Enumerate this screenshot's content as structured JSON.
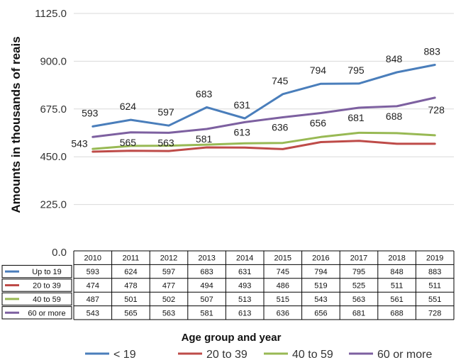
{
  "chart_data": {
    "type": "line",
    "title": "",
    "ylabel": "Amounts in thousands of reais",
    "xlabel": "Age group and year",
    "ylim": [
      0,
      1125
    ],
    "yticks": [
      "0.0",
      "225.0",
      "450.0",
      "675.0",
      "900.0",
      "1125.0"
    ],
    "grid": true,
    "legend_position": "bottom",
    "categories": [
      "2010",
      "2011",
      "2012",
      "2013",
      "2014",
      "2015",
      "2016",
      "2017",
      "2018",
      "2019"
    ],
    "series": [
      {
        "name": "< 19",
        "table_name": "Up to 19",
        "color": "#4a7ebb",
        "values": [
          593,
          624,
          597,
          683,
          631,
          745,
          794,
          795,
          848,
          883
        ],
        "data_labels": [
          "593",
          "624",
          "597",
          "683",
          "631",
          "745",
          "794",
          "795",
          "848",
          "883"
        ]
      },
      {
        "name": "20 to 39",
        "table_name": "20 to 39",
        "color": "#be4b48",
        "values": [
          474,
          478,
          477,
          494,
          493,
          486,
          519,
          525,
          511,
          511
        ]
      },
      {
        "name": "40 to 59",
        "table_name": "40 to 59",
        "color": "#98b954",
        "values": [
          487,
          501,
          502,
          507,
          513,
          515,
          543,
          563,
          561,
          551
        ]
      },
      {
        "name": "60 or more",
        "table_name": "60 or more",
        "color": "#7d60a0",
        "values": [
          543,
          565,
          563,
          581,
          613,
          636,
          656,
          681,
          688,
          728
        ],
        "data_labels": [
          "543",
          "565",
          "563",
          "581",
          "613",
          "636",
          "656",
          "681",
          "688",
          "728"
        ]
      }
    ]
  }
}
